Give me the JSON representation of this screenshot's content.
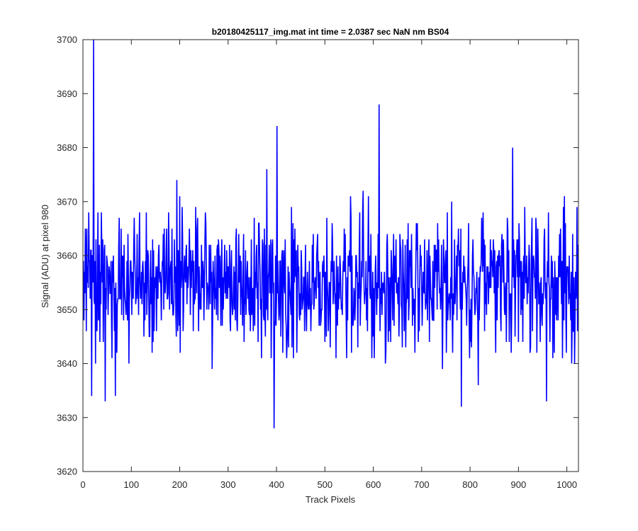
{
  "chart_data": {
    "type": "line",
    "title": "b20180425117_img.mat int time = 2.0387 sec  NaN nm BS04",
    "xlabel": "Track Pixels",
    "ylabel": "Signal (ADU) at pixel 980",
    "xlim": [
      0,
      1024
    ],
    "ylim": [
      3620,
      3700
    ],
    "xticks": [
      0,
      100,
      200,
      300,
      400,
      500,
      600,
      700,
      800,
      900,
      1000
    ],
    "yticks": [
      3620,
      3630,
      3640,
      3650,
      3660,
      3670,
      3680,
      3690,
      3700
    ],
    "xtick_labels": [
      "0",
      "100",
      "200",
      "300",
      "400",
      "500",
      "600",
      "700",
      "800",
      "900",
      "1000"
    ],
    "ytick_labels": [
      "3620",
      "3630",
      "3640",
      "3650",
      "3660",
      "3670",
      "3680",
      "3690",
      "3700"
    ],
    "grid": false,
    "box": true,
    "line_color": "#0000ff",
    "axes_color": "#262626",
    "series": [
      {
        "generated": {
          "count": 1024,
          "x_start": 1,
          "x_step": 1,
          "mean": 3655,
          "spread": 6.5,
          "min": 3628,
          "max": 3700,
          "seed": 980
        },
        "notable_points": [
          {
            "x": 22,
            "y": 3700
          },
          {
            "x": 18,
            "y": 3634
          },
          {
            "x": 46,
            "y": 3633
          },
          {
            "x": 67,
            "y": 3634
          },
          {
            "x": 380,
            "y": 3676
          },
          {
            "x": 395,
            "y": 3628
          },
          {
            "x": 401,
            "y": 3684
          },
          {
            "x": 612,
            "y": 3688
          },
          {
            "x": 782,
            "y": 3632
          },
          {
            "x": 888,
            "y": 3680
          },
          {
            "x": 958,
            "y": 3633
          },
          {
            "x": 1010,
            "y": 3640
          },
          {
            "x": 1016,
            "y": 3640
          },
          {
            "x": 1024,
            "y": 3650
          }
        ]
      }
    ]
  }
}
